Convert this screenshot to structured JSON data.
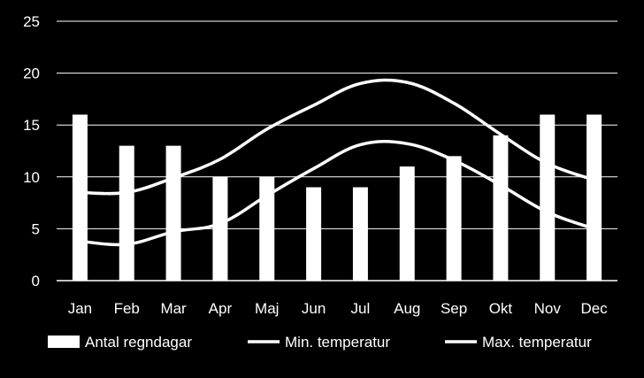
{
  "colors": {
    "background": "#000000",
    "foreground": "#ffffff",
    "gridline": "#ffffff"
  },
  "chart_data": {
    "type": "bar",
    "title": "",
    "xlabel": "",
    "ylabel": "",
    "grid": "horizontal",
    "legend_position": "bottom",
    "ylim": [
      0,
      25
    ],
    "y_ticks": [
      0,
      5,
      10,
      15,
      20,
      25
    ],
    "categories": [
      "Jan",
      "Feb",
      "Mar",
      "Apr",
      "Maj",
      "Jun",
      "Jul",
      "Aug",
      "Sep",
      "Okt",
      "Nov",
      "Dec"
    ],
    "series": [
      {
        "name": "Antal regndagar",
        "type": "bar",
        "values": [
          16,
          13,
          13,
          10,
          10,
          9,
          9,
          11,
          12,
          14,
          16,
          16
        ]
      },
      {
        "name": "Min. temperatur",
        "type": "line",
        "values": [
          3.8,
          3.5,
          4.7,
          5.5,
          8.2,
          10.8,
          13.1,
          13.2,
          11.6,
          9.2,
          6.6,
          5.0
        ]
      },
      {
        "name": "Max. temperatur",
        "type": "line",
        "values": [
          8.5,
          8.5,
          9.9,
          11.7,
          14.6,
          16.9,
          19.0,
          19.1,
          17.1,
          14.1,
          11.3,
          9.7
        ]
      }
    ]
  }
}
